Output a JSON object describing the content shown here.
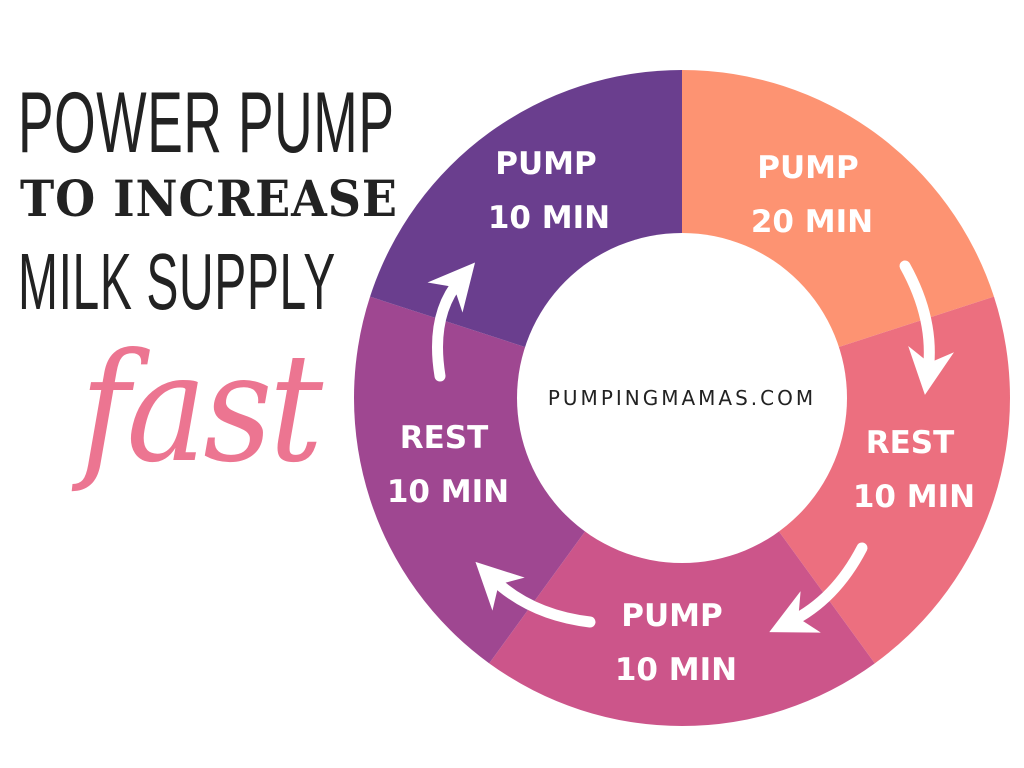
{
  "title": {
    "line1": "POWER PUMP",
    "line2": "TO INCREASE",
    "line3": "MILK SUPPLY",
    "accent": "fast",
    "accent_color": "#ec7591"
  },
  "cycle": {
    "center_text": "PUMPINGMAMAS.COM",
    "segments": [
      {
        "action": "PUMP",
        "duration": "20 MIN",
        "minutes": 20,
        "color": "#fd9372"
      },
      {
        "action": "REST",
        "duration": "10 MIN",
        "minutes": 10,
        "color": "#ec6f7f"
      },
      {
        "action": "PUMP",
        "duration": "10 MIN",
        "minutes": 10,
        "color": "#cc558a"
      },
      {
        "action": "REST",
        "duration": "10 MIN",
        "minutes": 10,
        "color": "#9f4791"
      },
      {
        "action": "PUMP",
        "duration": "10 MIN",
        "minutes": 10,
        "color": "#6a3e8e"
      }
    ],
    "arrow_direction": "clockwise"
  }
}
